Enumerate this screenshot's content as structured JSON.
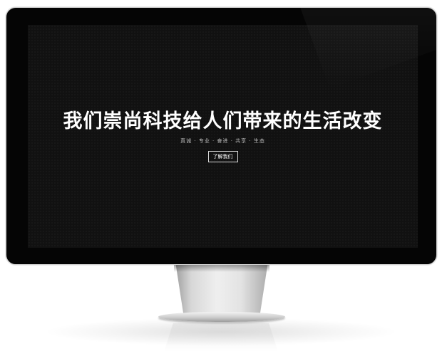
{
  "hero": {
    "title": "我们崇尚科技给人们带来的生活改变",
    "tagline": "真诚 · 专业 · 奋进 · 共享 · 生态",
    "button_label": "了解我们"
  },
  "colors": {
    "screen_background": "#111111",
    "bezel": "#050505",
    "text": "#ffffff"
  }
}
